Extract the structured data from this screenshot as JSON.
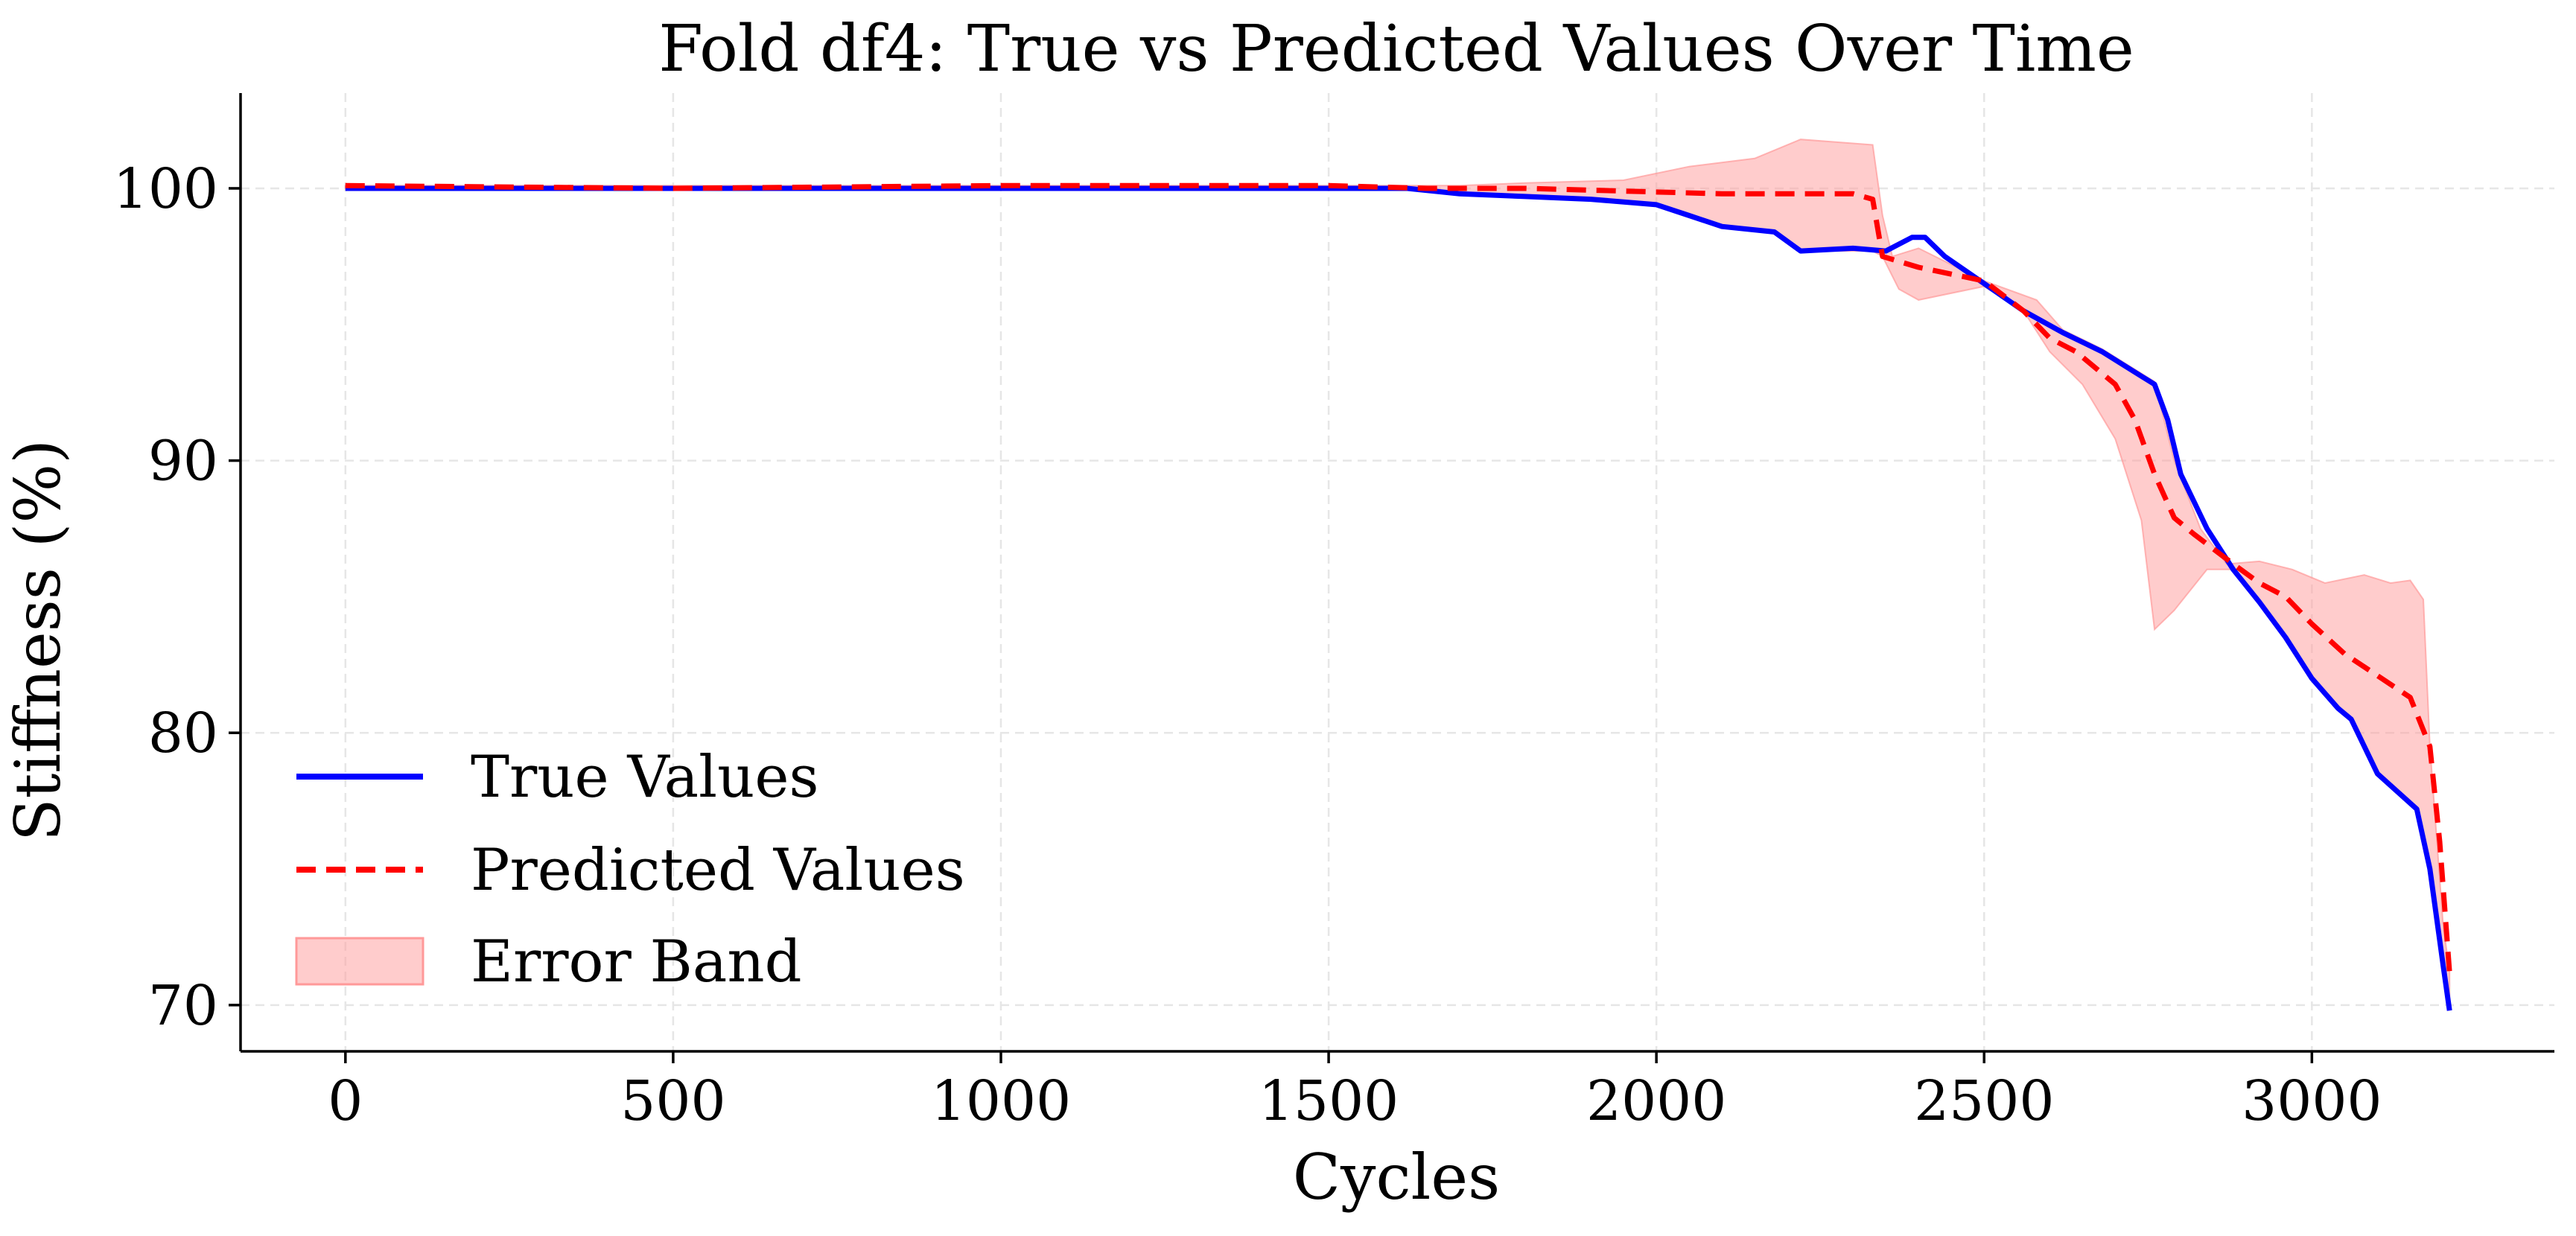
{
  "chart_data": {
    "type": "line",
    "title": "Fold df4: True vs Predicted Values Over Time",
    "xlabel": "Cycles",
    "ylabel": "Stiffness (%)",
    "xlim": [
      -160,
      3370
    ],
    "ylim": [
      68.3,
      103.5
    ],
    "xticks": [
      0,
      500,
      1000,
      1500,
      2000,
      2500,
      3000
    ],
    "yticks": [
      70,
      80,
      90,
      100
    ],
    "grid": true,
    "legend_position": "lower-left",
    "series": [
      {
        "name": "True Values",
        "color": "#0000ff",
        "style": "solid",
        "points": [
          [
            0,
            100
          ],
          [
            500,
            100
          ],
          [
            1000,
            100
          ],
          [
            1500,
            100
          ],
          [
            1620,
            100
          ],
          [
            1700,
            99.8
          ],
          [
            1800,
            99.7
          ],
          [
            1900,
            99.6
          ],
          [
            2000,
            99.4
          ],
          [
            2050,
            99.0
          ],
          [
            2100,
            98.6
          ],
          [
            2180,
            98.4
          ],
          [
            2220,
            97.7
          ],
          [
            2300,
            97.8
          ],
          [
            2350,
            97.7
          ],
          [
            2390,
            98.2
          ],
          [
            2410,
            98.2
          ],
          [
            2440,
            97.5
          ],
          [
            2500,
            96.5
          ],
          [
            2560,
            95.5
          ],
          [
            2620,
            94.7
          ],
          [
            2680,
            94.0
          ],
          [
            2740,
            93.1
          ],
          [
            2760,
            92.8
          ],
          [
            2780,
            91.5
          ],
          [
            2800,
            89.5
          ],
          [
            2840,
            87.5
          ],
          [
            2880,
            86.0
          ],
          [
            2920,
            84.8
          ],
          [
            2960,
            83.5
          ],
          [
            3000,
            82.0
          ],
          [
            3040,
            80.9
          ],
          [
            3060,
            80.5
          ],
          [
            3100,
            78.5
          ],
          [
            3160,
            77.2
          ],
          [
            3180,
            75.0
          ],
          [
            3200,
            71.5
          ],
          [
            3210,
            69.8
          ]
        ]
      },
      {
        "name": "Predicted Values",
        "color": "#ff0000",
        "style": "dashed",
        "points": [
          [
            0,
            100.1
          ],
          [
            500,
            100
          ],
          [
            1000,
            100.1
          ],
          [
            1500,
            100.1
          ],
          [
            1650,
            100
          ],
          [
            1800,
            100
          ],
          [
            1950,
            99.9
          ],
          [
            2100,
            99.8
          ],
          [
            2200,
            99.8
          ],
          [
            2300,
            99.8
          ],
          [
            2330,
            99.6
          ],
          [
            2345,
            97.5
          ],
          [
            2400,
            97.1
          ],
          [
            2500,
            96.6
          ],
          [
            2560,
            95.5
          ],
          [
            2600,
            94.5
          ],
          [
            2640,
            94.0
          ],
          [
            2700,
            92.8
          ],
          [
            2730,
            91.5
          ],
          [
            2760,
            89.5
          ],
          [
            2790,
            87.9
          ],
          [
            2820,
            87.3
          ],
          [
            2880,
            86.2
          ],
          [
            2920,
            85.5
          ],
          [
            2960,
            85.0
          ],
          [
            3000,
            84.0
          ],
          [
            3050,
            82.9
          ],
          [
            3100,
            82.1
          ],
          [
            3150,
            81.3
          ],
          [
            3180,
            79.5
          ],
          [
            3195,
            76.0
          ],
          [
            3210,
            71.2
          ]
        ]
      }
    ],
    "error_band": {
      "name": "Error Band",
      "color": "#ff9999",
      "upper": [
        [
          0,
          100.1
        ],
        [
          1600,
          100.1
        ],
        [
          1700,
          100.1
        ],
        [
          1800,
          100.2
        ],
        [
          1950,
          100.3
        ],
        [
          2050,
          100.8
        ],
        [
          2150,
          101.1
        ],
        [
          2220,
          101.8
        ],
        [
          2330,
          101.6
        ],
        [
          2345,
          99.0
        ],
        [
          2360,
          97.5
        ],
        [
          2400,
          97.8
        ],
        [
          2500,
          96.6
        ],
        [
          2580,
          95.9
        ],
        [
          2620,
          94.8
        ],
        [
          2680,
          94.1
        ],
        [
          2740,
          93.2
        ],
        [
          2760,
          92.9
        ],
        [
          2790,
          90.0
        ],
        [
          2830,
          87.5
        ],
        [
          2870,
          86.2
        ],
        [
          2920,
          86.3
        ],
        [
          2970,
          86.0
        ],
        [
          3020,
          85.5
        ],
        [
          3080,
          85.8
        ],
        [
          3120,
          85.5
        ],
        [
          3150,
          85.6
        ],
        [
          3170,
          84.9
        ],
        [
          3180,
          79.5
        ],
        [
          3200,
          73.0
        ],
        [
          3210,
          71.2
        ]
      ]
    },
    "lower": [
      [
        0,
        100
      ],
      [
        1600,
        100
      ],
      [
        1700,
        99.8
      ],
      [
        1800,
        99.7
      ],
      [
        1900,
        99.6
      ],
      [
        2000,
        99.4
      ],
      [
        2100,
        98.6
      ],
      [
        2180,
        98.4
      ],
      [
        2220,
        97.7
      ],
      [
        2330,
        97.7
      ],
      [
        2345,
        97.5
      ],
      [
        2370,
        96.3
      ],
      [
        2400,
        95.9
      ],
      [
        2500,
        96.4
      ],
      [
        2560,
        95.5
      ],
      [
        2600,
        94.0
      ],
      [
        2650,
        92.8
      ],
      [
        2700,
        90.8
      ],
      [
        2740,
        87.8
      ],
      [
        2760,
        83.8
      ],
      [
        2790,
        84.5
      ],
      [
        2840,
        86.0
      ],
      [
        2880,
        86.0
      ],
      [
        2920,
        84.8
      ],
      [
        2960,
        83.5
      ],
      [
        3000,
        82.0
      ],
      [
        3060,
        80.5
      ],
      [
        3100,
        78.5
      ],
      [
        3160,
        77.2
      ],
      [
        3180,
        75.0
      ],
      [
        3200,
        71.5
      ],
      [
        3210,
        69.8
      ]
    ]
  }
}
